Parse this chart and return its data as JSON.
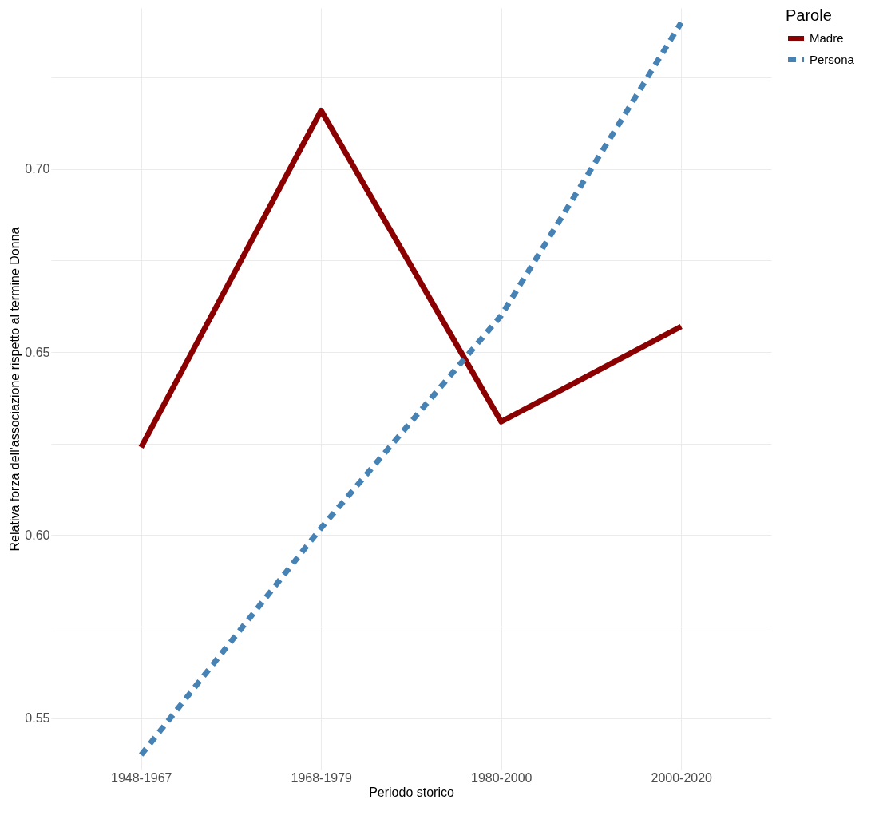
{
  "chart_data": {
    "type": "line",
    "xlabel": "Periodo storico",
    "ylabel": "Relativa forza dell'associazione rispetto al termine  Donna",
    "legend_title": "Parole",
    "categories": [
      "1948-1967",
      "1968-1979",
      "1980-2000",
      "2000-2020"
    ],
    "series": [
      {
        "name": "Madre",
        "color": "#8b0000",
        "line_style": "solid",
        "values": [
          0.624,
          0.716,
          0.631,
          0.657
        ]
      },
      {
        "name": "Persona",
        "color": "#4682b4",
        "line_style": "dashed",
        "values": [
          0.54,
          0.602,
          0.66,
          0.74
        ]
      }
    ],
    "ylim": [
      0.536,
      0.744
    ],
    "yticks": [
      0.55,
      {
        "value": 0.575,
        "label": null
      },
      {
        "value": 0.6,
        "label": "0.60"
      },
      {
        "value": 0.625,
        "label": null
      },
      0.65,
      {
        "value": 0.675,
        "label": null
      },
      {
        "value": 0.7,
        "label": "0.70"
      },
      {
        "value": 0.725,
        "label": null
      }
    ],
    "grid": true,
    "legend": "right"
  }
}
